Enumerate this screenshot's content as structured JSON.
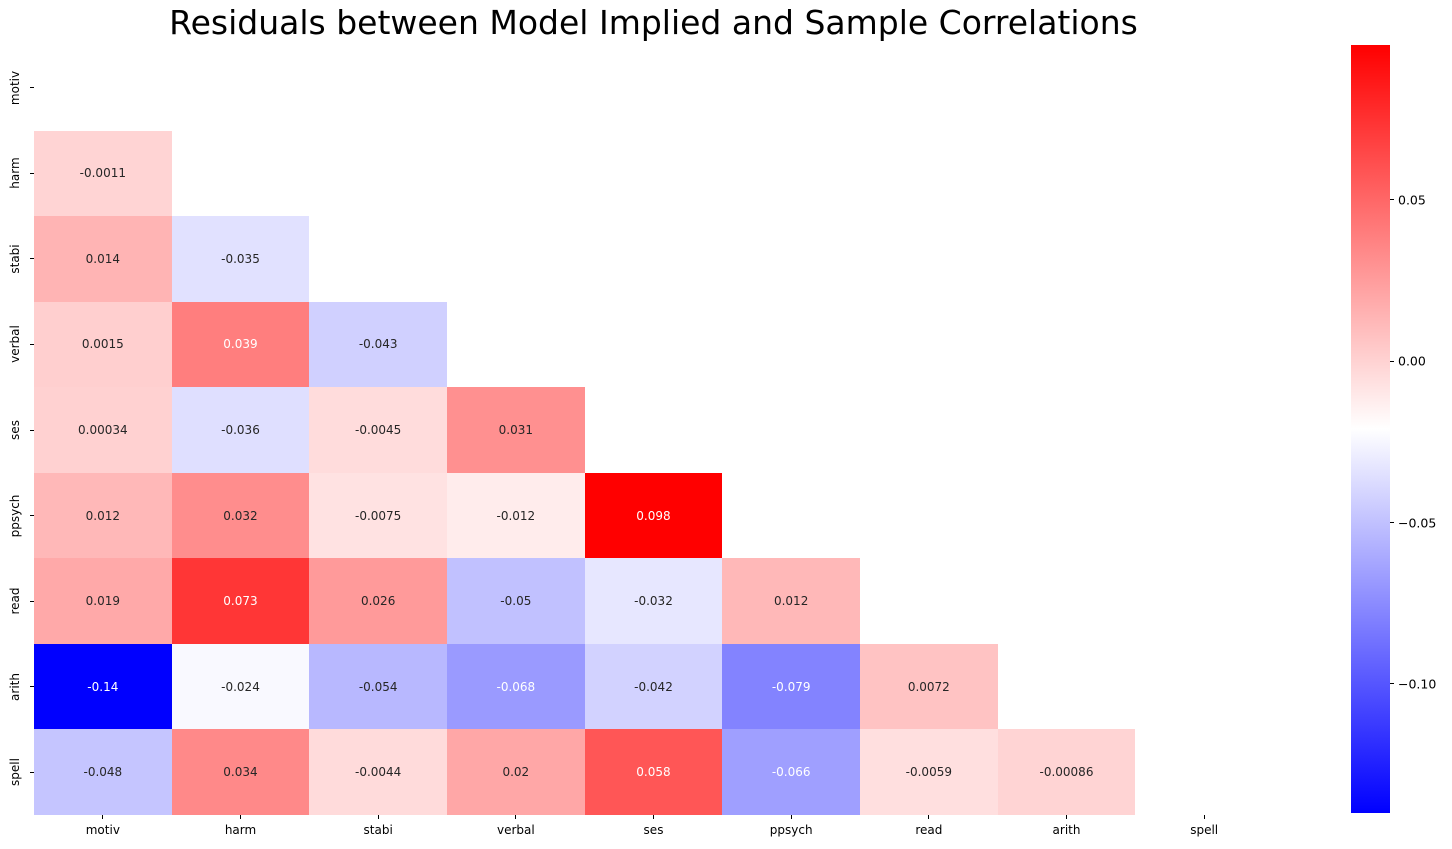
{
  "chart_data": {
    "type": "heatmap",
    "title": "Residuals between Model Implied and Sample Correlations",
    "x_tick_labels": [
      "motiv",
      "harm",
      "stabi",
      "verbal",
      "ses",
      "ppsych",
      "read",
      "arith",
      "spell"
    ],
    "y_tick_labels": [
      "motiv",
      "harm",
      "stabi",
      "verbal",
      "ses",
      "ppsych",
      "read",
      "arith",
      "spell"
    ],
    "mask": "upper triangle and diagonal hidden",
    "grid": false,
    "vmin": -0.14,
    "vmax": 0.098,
    "colormap": {
      "name": "bwr",
      "low": "#0000ff",
      "mid": "#ffffff",
      "high": "#ff0000"
    },
    "annotation_dark_color": "#262626",
    "annotation_light_color": "#ffffff",
    "values": [
      [
        null,
        null,
        null,
        null,
        null,
        null,
        null,
        null,
        null
      ],
      [
        -0.0011,
        null,
        null,
        null,
        null,
        null,
        null,
        null,
        null
      ],
      [
        0.014,
        -0.035,
        null,
        null,
        null,
        null,
        null,
        null,
        null
      ],
      [
        0.0015,
        0.039,
        -0.043,
        null,
        null,
        null,
        null,
        null,
        null
      ],
      [
        0.00034,
        -0.036,
        -0.0045,
        0.031,
        null,
        null,
        null,
        null,
        null
      ],
      [
        0.012,
        0.032,
        -0.0075,
        -0.012,
        0.098,
        null,
        null,
        null,
        null
      ],
      [
        0.019,
        0.073,
        0.026,
        -0.05,
        -0.032,
        0.012,
        null,
        null,
        null
      ],
      [
        -0.14,
        -0.024,
        -0.054,
        -0.068,
        -0.042,
        -0.079,
        0.0072,
        null,
        null
      ],
      [
        -0.048,
        0.034,
        -0.0044,
        0.02,
        0.058,
        -0.066,
        -0.0059,
        -0.00086,
        null
      ]
    ],
    "annotations": [
      [
        "",
        "",
        "",
        "",
        "",
        "",
        "",
        "",
        ""
      ],
      [
        "-0.0011",
        "",
        "",
        "",
        "",
        "",
        "",
        "",
        ""
      ],
      [
        "0.014",
        "-0.035",
        "",
        "",
        "",
        "",
        "",
        "",
        ""
      ],
      [
        "0.0015",
        "0.039",
        "-0.043",
        "",
        "",
        "",
        "",
        "",
        ""
      ],
      [
        "0.00034",
        "-0.036",
        "-0.0045",
        "0.031",
        "",
        "",
        "",
        "",
        ""
      ],
      [
        "0.012",
        "0.032",
        "-0.0075",
        "-0.012",
        "0.098",
        "",
        "",
        "",
        ""
      ],
      [
        "0.019",
        "0.073",
        "0.026",
        "-0.05",
        "-0.032",
        "0.012",
        "",
        "",
        ""
      ],
      [
        "-0.14",
        "-0.024",
        "-0.054",
        "-0.068",
        "-0.042",
        "-0.079",
        "0.0072",
        "",
        ""
      ],
      [
        "-0.048",
        "0.034",
        "-0.0044",
        "0.02",
        "0.058",
        "-0.066",
        "-0.0059",
        "-0.00086",
        ""
      ]
    ],
    "colorbar": {
      "tick_values": [
        0.05,
        0.0,
        -0.05,
        -0.1
      ],
      "tick_labels": [
        "0.05",
        "0.00",
        "−0.05",
        "−0.10"
      ],
      "position": "right"
    }
  }
}
